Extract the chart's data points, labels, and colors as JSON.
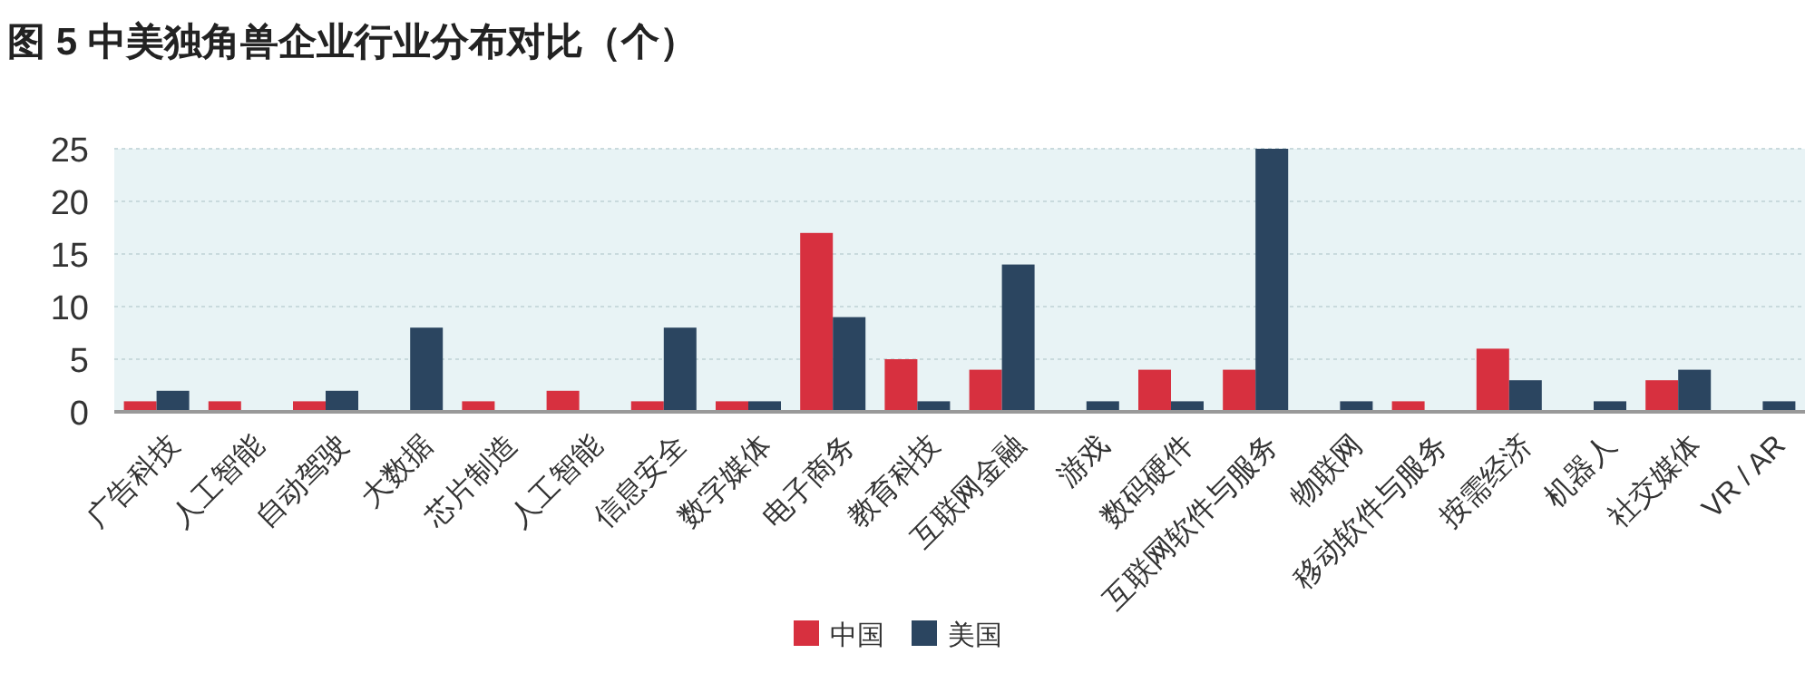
{
  "chart_data": {
    "type": "bar",
    "title": "图 5 中美独角兽企业行业分布对比（个）",
    "categories": [
      "广告科技",
      "人工智能",
      "自动驾驶",
      "大数据",
      "芯片制造",
      "人工智能",
      "信息安全",
      "数字媒体",
      "电子商务",
      "教育科技",
      "互联网金融",
      "游戏",
      "数码硬件",
      "互联网软件与服务",
      "物联网",
      "移动软件与服务",
      "按需经济",
      "机器人",
      "社交媒体",
      "VR / AR"
    ],
    "series": [
      {
        "name": "中国",
        "color": "#d7303f",
        "values": [
          1,
          1,
          1,
          null,
          1,
          2,
          1,
          1,
          17,
          5,
          4,
          null,
          4,
          4,
          null,
          1,
          6,
          null,
          3,
          null
        ]
      },
      {
        "name": "美国",
        "color": "#2b4560",
        "values": [
          2,
          null,
          2,
          8,
          null,
          null,
          8,
          1,
          9,
          1,
          14,
          1,
          1,
          25,
          1,
          null,
          3,
          1,
          4,
          1
        ]
      }
    ],
    "ylim": [
      0,
      25
    ],
    "yticks": [
      0,
      5,
      10,
      15,
      20,
      25
    ],
    "grid": "y",
    "legend": "bottom"
  }
}
